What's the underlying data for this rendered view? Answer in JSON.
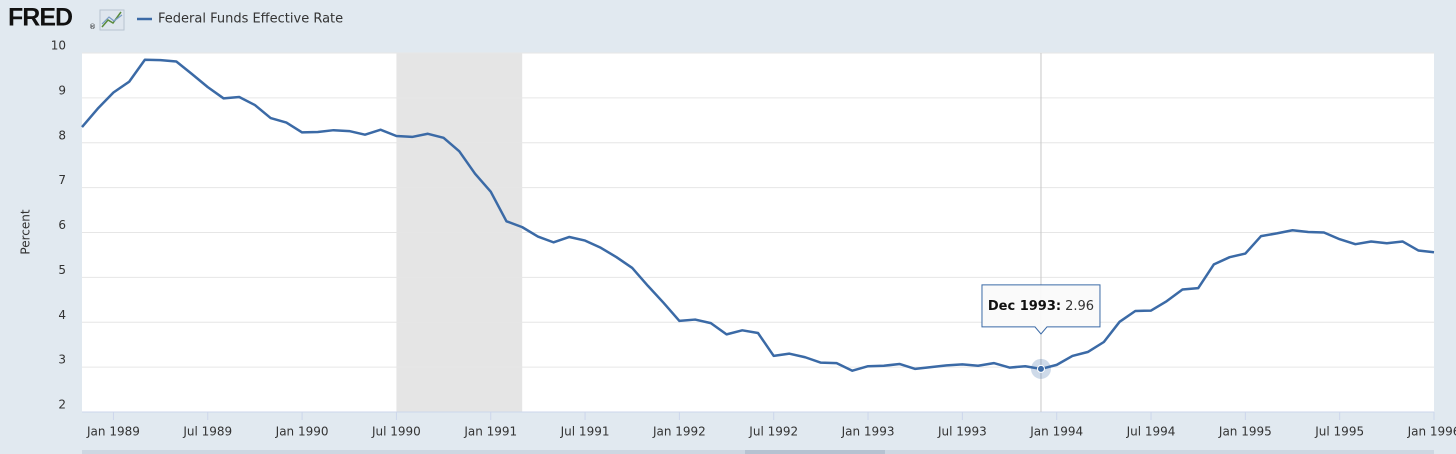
{
  "chart_data": {
    "type": "line",
    "logo": "FRED",
    "logo_mark": "®",
    "y_label": "Percent",
    "series": [
      {
        "name": "Federal Funds Effective Rate",
        "color": "#3b6aa6",
        "values": [
          8.35,
          8.76,
          9.12,
          9.36,
          9.85,
          9.84,
          9.81,
          9.53,
          9.24,
          8.99,
          9.02,
          8.84,
          8.55,
          8.45,
          8.23,
          8.24,
          8.28,
          8.26,
          8.18,
          8.29,
          8.15,
          8.13,
          8.2,
          8.11,
          7.81,
          7.31,
          6.91,
          6.25,
          6.12,
          5.91,
          5.78,
          5.9,
          5.82,
          5.66,
          5.45,
          5.21,
          4.81,
          4.43,
          4.03,
          4.06,
          3.98,
          3.73,
          3.82,
          3.76,
          3.25,
          3.3,
          3.22,
          3.1,
          3.09,
          2.92,
          3.02,
          3.03,
          3.07,
          2.96,
          3.0,
          3.04,
          3.06,
          3.03,
          3.09,
          2.99,
          3.02,
          2.96,
          3.05,
          3.25,
          3.34,
          3.56,
          4.01,
          4.25,
          4.26,
          4.47,
          4.73,
          4.76,
          5.29,
          5.45,
          5.53,
          5.92,
          5.98,
          6.05,
          6.01,
          6.0,
          5.85,
          5.74,
          5.8,
          5.76,
          5.8,
          5.6,
          5.56
        ]
      }
    ],
    "x": [
      "1988-11",
      "1988-12",
      "1989-01",
      "1989-02",
      "1989-03",
      "1989-04",
      "1989-05",
      "1989-06",
      "1989-07",
      "1989-08",
      "1989-09",
      "1989-10",
      "1989-11",
      "1989-12",
      "1990-01",
      "1990-02",
      "1990-03",
      "1990-04",
      "1990-05",
      "1990-06",
      "1990-07",
      "1990-08",
      "1990-09",
      "1990-10",
      "1990-11",
      "1990-12",
      "1991-01",
      "1991-02",
      "1991-03",
      "1991-04",
      "1991-05",
      "1991-06",
      "1991-07",
      "1991-08",
      "1991-09",
      "1991-10",
      "1991-11",
      "1991-12",
      "1992-01",
      "1992-02",
      "1992-03",
      "1992-04",
      "1992-05",
      "1992-06",
      "1992-07",
      "1992-08",
      "1992-09",
      "1992-10",
      "1992-11",
      "1992-12",
      "1993-01",
      "1993-02",
      "1993-03",
      "1993-04",
      "1993-05",
      "1993-06",
      "1993-07",
      "1993-08",
      "1993-09",
      "1993-10",
      "1993-11",
      "1993-12",
      "1994-01",
      "1994-02",
      "1994-03",
      "1994-04",
      "1994-05",
      "1994-06",
      "1994-07",
      "1994-08",
      "1994-09",
      "1994-10",
      "1994-11",
      "1994-12",
      "1995-01",
      "1995-02",
      "1995-03",
      "1995-04",
      "1995-05",
      "1995-06",
      "1995-07",
      "1995-08",
      "1995-09",
      "1995-10",
      "1995-11",
      "1995-12",
      "1996-01"
    ],
    "xlim": [
      "1988-11",
      "1996-01"
    ],
    "xticks": [
      {
        "value": "1989-01",
        "label": "Jan 1989"
      },
      {
        "value": "1989-07",
        "label": "Jul 1989"
      },
      {
        "value": "1990-01",
        "label": "Jan 1990"
      },
      {
        "value": "1990-07",
        "label": "Jul 1990"
      },
      {
        "value": "1991-01",
        "label": "Jan 1991"
      },
      {
        "value": "1991-07",
        "label": "Jul 1991"
      },
      {
        "value": "1992-01",
        "label": "Jan 1992"
      },
      {
        "value": "1992-07",
        "label": "Jul 1992"
      },
      {
        "value": "1993-01",
        "label": "Jan 1993"
      },
      {
        "value": "1993-07",
        "label": "Jul 1993"
      },
      {
        "value": "1994-01",
        "label": "Jan 1994"
      },
      {
        "value": "1994-07",
        "label": "Jul 1994"
      },
      {
        "value": "1995-01",
        "label": "Jan 1995"
      },
      {
        "value": "1995-07",
        "label": "Jul 1995"
      },
      {
        "value": "1996-01",
        "label": "Jan 1996"
      }
    ],
    "ylim": [
      2,
      10
    ],
    "yticks": [
      2,
      3,
      4,
      5,
      6,
      7,
      8,
      9,
      10
    ],
    "grid": true,
    "recessions": [
      [
        "1990-07",
        "1991-03"
      ]
    ],
    "tooltip": {
      "x": "1993-12",
      "label": "Dec 1993:"
    }
  }
}
